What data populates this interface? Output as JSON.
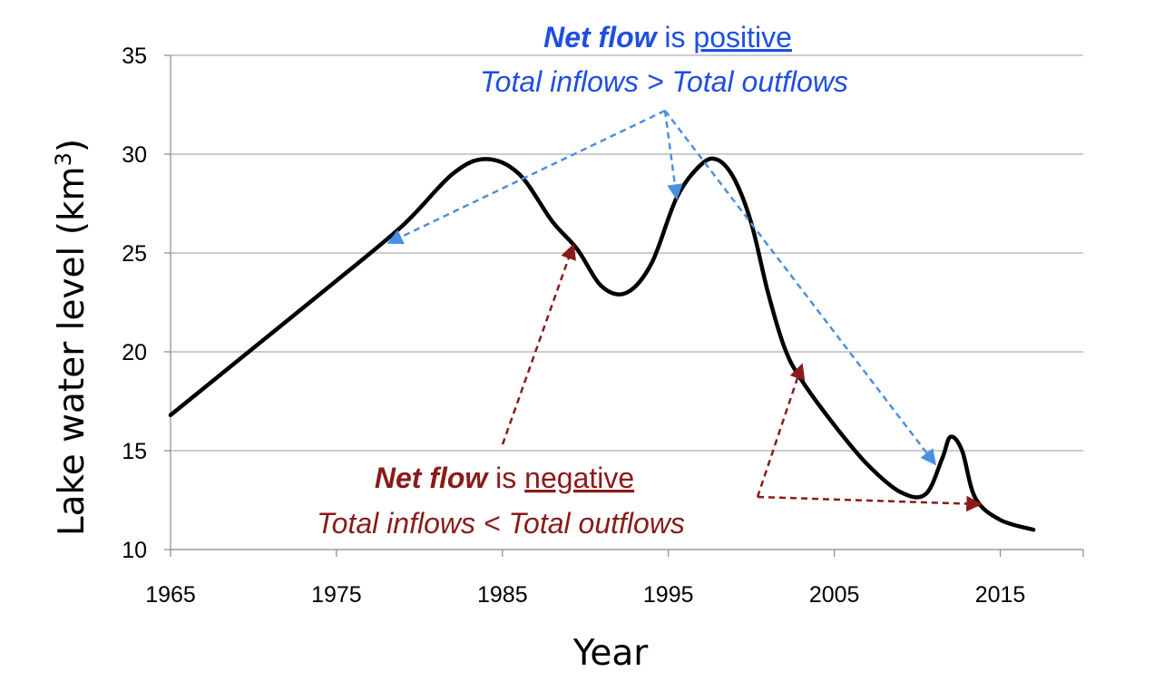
{
  "chart_data": {
    "type": "line",
    "xlabel": "Year",
    "ylabel_main": "Lake water level (km",
    "ylabel_sup": "3",
    "ylabel_close": ")",
    "xlim": [
      1965,
      2020
    ],
    "ylim": [
      10,
      35
    ],
    "x_ticks": [
      "1965",
      "1975",
      "1985",
      "1995",
      "2005",
      "2015"
    ],
    "x_tick_values": [
      1965,
      1975,
      1985,
      1995,
      2005,
      2015
    ],
    "y_ticks": [
      "10",
      "15",
      "20",
      "25",
      "30",
      "35"
    ],
    "y_tick_values": [
      10,
      15,
      20,
      25,
      30,
      35
    ],
    "grid": "horizontal",
    "series": [
      {
        "name": "Lake water level",
        "color": "#000000",
        "x": [
          1965,
          1970,
          1975,
          1979,
          1982,
          1984,
          1986,
          1988,
          1989.5,
          1991,
          1992.5,
          1994,
          1995.5,
          1997,
          1998,
          1999,
          2000,
          2001,
          2002,
          2003,
          2005,
          2007,
          2009,
          2010.5,
          2011.5,
          2012,
          2012.7,
          2013.5,
          2015,
          2017
        ],
        "values": [
          16.8,
          20.2,
          23.6,
          26.4,
          29.0,
          29.75,
          29.0,
          26.6,
          25.2,
          23.3,
          23.0,
          24.5,
          27.8,
          29.5,
          29.7,
          28.7,
          26.5,
          23.0,
          20.2,
          18.6,
          16.3,
          14.3,
          12.9,
          12.8,
          14.6,
          15.7,
          15.0,
          12.6,
          11.5,
          11.0
        ]
      }
    ],
    "annotations": {
      "positive": {
        "bold": "Net flow",
        "mid": " is ",
        "underlined": "positive",
        "line2": "Total inflows > Total outflows",
        "color": "#1f4fe0",
        "arrow_color": "#4a90e2"
      },
      "negative": {
        "bold": "Net flow",
        "mid": " is ",
        "underlined": "negative",
        "line2": "Total inflows < Total outflows",
        "color": "#8b1a1a",
        "arrow_color": "#8b1a1a"
      }
    }
  }
}
